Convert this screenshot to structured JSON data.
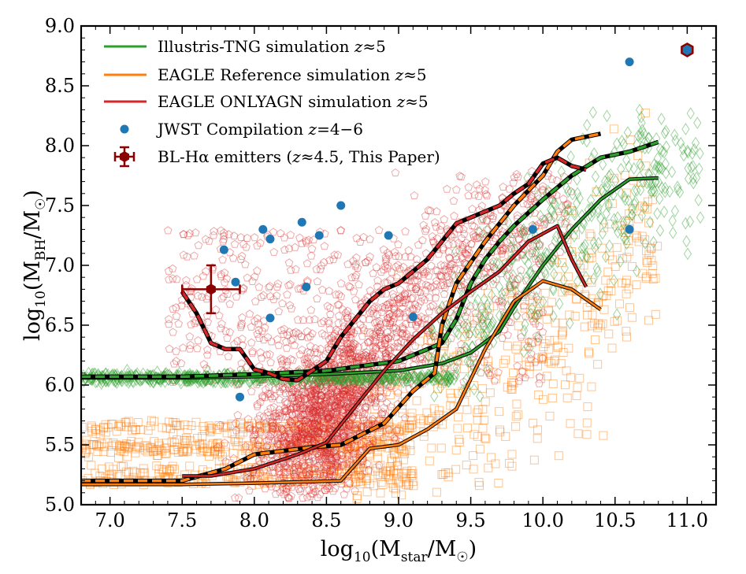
{
  "chart_data": {
    "type": "scatter",
    "title": "",
    "xlabel": "log10(Mstar/M☉)",
    "ylabel": "log10(MBH/M☉)",
    "xlabel_parts": {
      "base": "log",
      "sub1": "10",
      "open": "(M",
      "sub2": "star",
      "mid": "/M",
      "sub3": "☉",
      "close": ")"
    },
    "ylabel_parts": {
      "base": "log",
      "sub1": "10",
      "open": "(M",
      "sub2": "BH",
      "mid": "/M",
      "sub3": "☉",
      "close": ")"
    },
    "xlim": [
      6.8,
      11.2
    ],
    "ylim": [
      5.0,
      9.0
    ],
    "xticks": [
      7.0,
      7.5,
      8.0,
      8.5,
      9.0,
      9.5,
      10.0,
      10.5,
      11.0
    ],
    "xtick_labels": [
      "7.0",
      "7.5",
      "8.0",
      "8.5",
      "9.0",
      "9.5",
      "10.0",
      "10.5",
      "11.0"
    ],
    "yticks": [
      5.0,
      5.5,
      6.0,
      6.5,
      7.0,
      7.5,
      8.0,
      8.5,
      9.0
    ],
    "ytick_labels": [
      "5.0",
      "5.5",
      "6.0",
      "6.5",
      "7.0",
      "7.5",
      "8.0",
      "8.5",
      "9.0"
    ],
    "legend_position": "upper-left",
    "legend": [
      {
        "key": "tng",
        "label": "Illustris-TNG simulation z≈5",
        "color": "#2ca02c",
        "marker": "line"
      },
      {
        "key": "eagle_ref",
        "label": "EAGLE Reference simulation z≈5",
        "color": "#ff7f0e",
        "marker": "line"
      },
      {
        "key": "eagle_onlyagn",
        "label": "EAGLE ONLYAGN simulation z≈5",
        "color": "#d62728",
        "marker": "line"
      },
      {
        "key": "jwst",
        "label": "JWST Compilation z=4−6",
        "color": "#1f77b4",
        "marker": "dot"
      },
      {
        "key": "blha",
        "label": "BL-Hα emitters (z≈4.5, This Paper)",
        "color": "#8b0000",
        "marker": "errorbar"
      }
    ],
    "series": [
      {
        "name": "Illustris-TNG median (solid)",
        "color": "#2ca02c",
        "style": "solid",
        "x": [
          6.8,
          7.5,
          8.0,
          8.5,
          9.0,
          9.3,
          9.5,
          9.7,
          9.8,
          10.0,
          10.2,
          10.4,
          10.6,
          10.8
        ],
        "y": [
          6.06,
          6.06,
          6.07,
          6.09,
          6.12,
          6.18,
          6.27,
          6.45,
          6.65,
          7.0,
          7.3,
          7.55,
          7.72,
          7.73
        ]
      },
      {
        "name": "Illustris-TNG upper (dashed)",
        "color": "#2ca02c",
        "style": "dashed",
        "x": [
          6.8,
          7.5,
          8.0,
          8.5,
          9.0,
          9.3,
          9.4,
          9.5,
          9.6,
          9.7,
          9.8,
          10.0,
          10.2,
          10.4,
          10.6,
          10.8
        ],
        "y": [
          6.07,
          6.07,
          6.09,
          6.12,
          6.2,
          6.35,
          6.55,
          6.85,
          7.05,
          7.2,
          7.33,
          7.55,
          7.75,
          7.9,
          7.95,
          8.03
        ]
      },
      {
        "name": "EAGLE Reference median (solid)",
        "color": "#ff7f0e",
        "style": "solid",
        "x": [
          6.8,
          7.5,
          8.0,
          8.6,
          8.8,
          9.0,
          9.2,
          9.4,
          9.6,
          9.8,
          10.0,
          10.2,
          10.4
        ],
        "y": [
          5.17,
          5.17,
          5.18,
          5.2,
          5.47,
          5.5,
          5.63,
          5.8,
          6.3,
          6.7,
          6.87,
          6.8,
          6.63
        ]
      },
      {
        "name": "EAGLE Reference upper (dashed)",
        "color": "#ff7f0e",
        "style": "dashed",
        "x": [
          6.8,
          7.5,
          7.8,
          8.0,
          8.4,
          8.6,
          8.9,
          9.1,
          9.25,
          9.3,
          9.4,
          9.6,
          9.8,
          10.0,
          10.1,
          10.2,
          10.4
        ],
        "y": [
          5.2,
          5.2,
          5.3,
          5.42,
          5.48,
          5.5,
          5.68,
          5.95,
          6.1,
          6.5,
          6.85,
          7.2,
          7.5,
          7.75,
          7.95,
          8.05,
          8.1
        ]
      },
      {
        "name": "EAGLE ONLYAGN median (solid)",
        "color": "#d62728",
        "style": "solid",
        "x": [
          7.5,
          7.7,
          8.0,
          8.3,
          8.5,
          8.7,
          8.9,
          9.1,
          9.3,
          9.5,
          9.7,
          9.9,
          10.1,
          10.2,
          10.3
        ],
        "y": [
          5.24,
          5.24,
          5.3,
          5.42,
          5.52,
          5.82,
          6.12,
          6.38,
          6.6,
          6.78,
          6.95,
          7.2,
          7.33,
          7.05,
          6.82
        ]
      },
      {
        "name": "EAGLE ONLYAGN upper (dashed)",
        "color": "#d62728",
        "style": "dashed",
        "x": [
          7.5,
          7.6,
          7.7,
          7.8,
          7.9,
          8.0,
          8.1,
          8.2,
          8.3,
          8.4,
          8.5,
          8.6,
          8.7,
          8.8,
          8.9,
          9.0,
          9.1,
          9.2,
          9.3,
          9.4,
          9.5,
          9.6,
          9.7,
          9.8,
          9.9,
          10.0,
          10.1,
          10.2,
          10.3
        ],
        "y": [
          6.78,
          6.6,
          6.35,
          6.3,
          6.3,
          6.13,
          6.1,
          6.05,
          6.04,
          6.12,
          6.2,
          6.4,
          6.55,
          6.7,
          6.8,
          6.85,
          6.95,
          7.05,
          7.2,
          7.35,
          7.4,
          7.45,
          7.5,
          7.6,
          7.68,
          7.85,
          7.9,
          7.83,
          7.8
        ]
      },
      {
        "name": "JWST Compilation z=4-6",
        "color": "#1f77b4",
        "style": "points",
        "x": [
          7.79,
          7.87,
          7.9,
          8.06,
          8.11,
          8.11,
          8.33,
          8.36,
          8.45,
          8.6,
          8.93,
          9.1,
          9.93,
          10.6,
          10.6
        ],
        "y": [
          7.13,
          6.86,
          5.9,
          7.3,
          7.22,
          6.56,
          7.36,
          6.82,
          7.25,
          7.5,
          7.25,
          6.57,
          7.3,
          8.7,
          7.3
        ]
      },
      {
        "name": "BL-Hα emitters (stacked)",
        "color": "#8b0000",
        "style": "errorbar",
        "x": [
          7.7
        ],
        "y": [
          6.8
        ],
        "xerr": [
          0.2
        ],
        "yerr": [
          0.2
        ]
      },
      {
        "name": "Highlighted hexagon point",
        "color": "#1f77b4",
        "edge": "#8b0000",
        "style": "hexagon",
        "x": [
          11.0
        ],
        "y": [
          8.8
        ]
      }
    ],
    "scatter_clouds": [
      {
        "name": "EAGLE Reference galaxies",
        "color": "#ff7f0e",
        "marker": "square",
        "count": 1100
      },
      {
        "name": "EAGLE ONLYAGN galaxies",
        "color": "#d62728",
        "marker": "pentagon",
        "count": 2600
      },
      {
        "name": "Illustris-TNG galaxies",
        "color": "#2ca02c",
        "marker": "diamond",
        "count": 1000
      }
    ],
    "grid": false
  }
}
